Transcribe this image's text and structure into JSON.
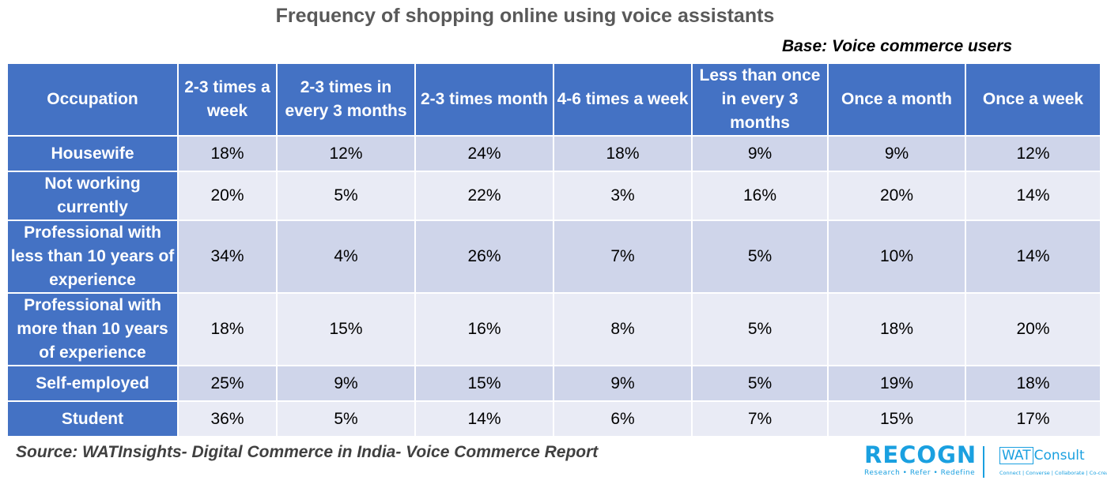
{
  "title": "Frequency of shopping online using voice assistants",
  "base_note": "Base: Voice commerce users",
  "source": "Source: WATInsights- Digital Commerce in India- Voice Commerce Report",
  "colors": {
    "header_fill": "#4472c4",
    "row_fill_dark": "#cfd5ea",
    "row_fill_light": "#e9ebf5",
    "logo_blue": "#1aa0e0"
  },
  "logos": {
    "recogn": {
      "word": "RECOGN",
      "tagline": "Research  •  Refer  •  Redefine"
    },
    "watconsult": {
      "box": "WAT",
      "word": "Consult",
      "tagline": "Connect | Converse | Collaborate | Co-create"
    }
  },
  "chart_data": {
    "type": "table",
    "columns": [
      "Occupation",
      "2-3 times a week",
      "2-3 times in every 3 months",
      "2-3 times month",
      "4-6 times a week",
      "Less than once in every 3 months",
      "Once a month",
      "Once a week"
    ],
    "rows": [
      {
        "label": "Housewife",
        "values": [
          "18%",
          "12%",
          "24%",
          "18%",
          "9%",
          "9%",
          "12%"
        ]
      },
      {
        "label": "Not working currently",
        "values": [
          "20%",
          "5%",
          "22%",
          "3%",
          "16%",
          "20%",
          "14%"
        ]
      },
      {
        "label": "Professional with less than 10 years of experience",
        "values": [
          "34%",
          "4%",
          "26%",
          "7%",
          "5%",
          "10%",
          "14%"
        ]
      },
      {
        "label": "Professional with more than 10 years of experience",
        "values": [
          "18%",
          "15%",
          "16%",
          "8%",
          "5%",
          "18%",
          "20%"
        ]
      },
      {
        "label": "Self-employed",
        "values": [
          "25%",
          "9%",
          "15%",
          "9%",
          "5%",
          "19%",
          "18%"
        ]
      },
      {
        "label": "Student",
        "values": [
          "36%",
          "5%",
          "14%",
          "6%",
          "7%",
          "15%",
          "17%"
        ]
      }
    ]
  }
}
